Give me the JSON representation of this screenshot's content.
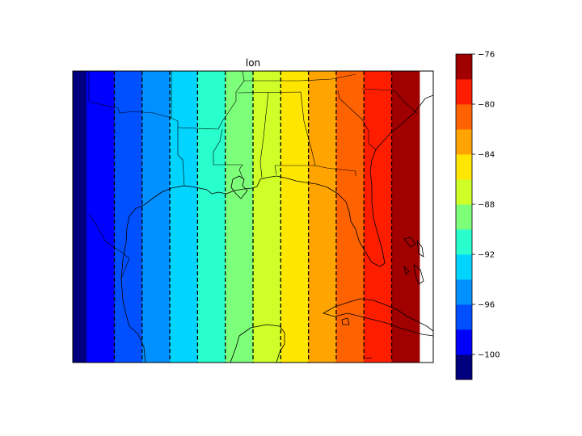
{
  "chart_data": {
    "type": "heatmap",
    "title": "lon",
    "map_extent": {
      "lon_min": -102,
      "lon_max": -76,
      "lat_min": 17,
      "lat_max": 38
    },
    "bands": [
      {
        "lon_min": -102,
        "lon_max": -101,
        "color": "#00007f"
      },
      {
        "lon_min": -101,
        "lon_max": -99,
        "color": "#0000ff"
      },
      {
        "lon_min": -99,
        "lon_max": -97,
        "color": "#0050ff"
      },
      {
        "lon_min": -97,
        "lon_max": -95,
        "color": "#0090ff"
      },
      {
        "lon_min": -95,
        "lon_max": -93,
        "color": "#00d4ff"
      },
      {
        "lon_min": -93,
        "lon_max": -91,
        "color": "#29ffce"
      },
      {
        "lon_min": -91,
        "lon_max": -89,
        "color": "#7dff7a"
      },
      {
        "lon_min": -89,
        "lon_max": -87,
        "color": "#ceff29"
      },
      {
        "lon_min": -87,
        "lon_max": -85,
        "color": "#ffe600"
      },
      {
        "lon_min": -85,
        "lon_max": -83,
        "color": "#ffa400"
      },
      {
        "lon_min": -83,
        "lon_max": -81,
        "color": "#ff6200"
      },
      {
        "lon_min": -81,
        "lon_max": -79,
        "color": "#ff1d00"
      },
      {
        "lon_min": -79,
        "lon_max": -77,
        "color": "#a10000"
      }
    ],
    "contour_lines": [
      -99,
      -97,
      -95,
      -93,
      -91,
      -89,
      -87,
      -85,
      -83,
      -81,
      -79
    ],
    "colorbar": {
      "min": -102,
      "max": -76,
      "levels": [
        {
          "from": -102,
          "to": -100,
          "color": "#00007f"
        },
        {
          "from": -100,
          "to": -98,
          "color": "#0000ff"
        },
        {
          "from": -98,
          "to": -96,
          "color": "#0050ff"
        },
        {
          "from": -96,
          "to": -94,
          "color": "#0090ff"
        },
        {
          "from": -94,
          "to": -92,
          "color": "#00d4ff"
        },
        {
          "from": -92,
          "to": -90,
          "color": "#29ffce"
        },
        {
          "from": -90,
          "to": -88,
          "color": "#7dff7a"
        },
        {
          "from": -88,
          "to": -86,
          "color": "#ceff29"
        },
        {
          "from": -86,
          "to": -84,
          "color": "#ffe600"
        },
        {
          "from": -84,
          "to": -82,
          "color": "#ffa400"
        },
        {
          "from": -82,
          "to": -80,
          "color": "#ff6200"
        },
        {
          "from": -80,
          "to": -78,
          "color": "#ff1d00"
        },
        {
          "from": -78,
          "to": -76,
          "color": "#a10000"
        }
      ],
      "ticks": [
        {
          "value": -76,
          "label": "−76"
        },
        {
          "value": -80,
          "label": "−80"
        },
        {
          "value": -84,
          "label": "−84"
        },
        {
          "value": -88,
          "label": "−88"
        },
        {
          "value": -92,
          "label": "−92"
        },
        {
          "value": -96,
          "label": "−96"
        },
        {
          "value": -100,
          "label": "−100"
        }
      ]
    }
  }
}
